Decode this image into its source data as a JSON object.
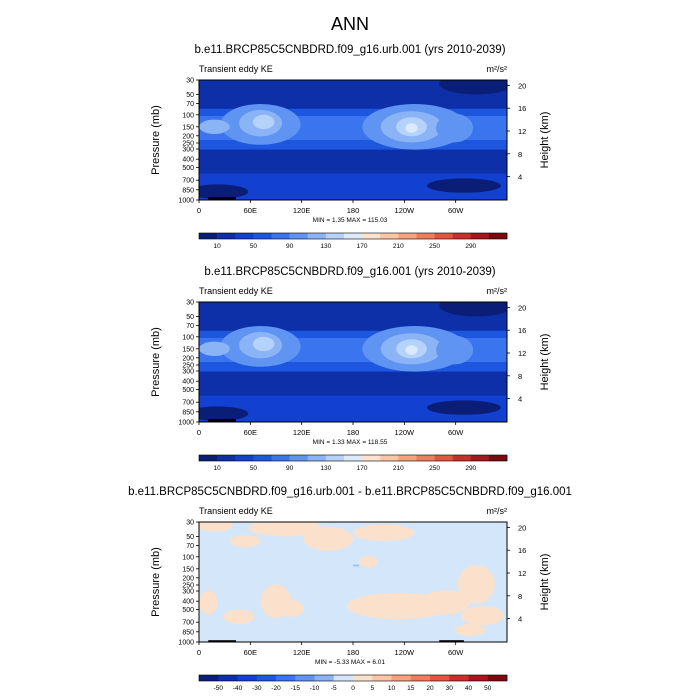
{
  "title": "ANN",
  "colors": {
    "blues": [
      "#0a1e78",
      "#0d2fa8",
      "#1240d0",
      "#1d57e0",
      "#3a74ee",
      "#5f94f2",
      "#8ab4f6",
      "#b4d2fa",
      "#dbeafd"
    ],
    "diff_background": "#d3e6fa",
    "diff_positive": "#fbe1cc",
    "land_mask": "#000000"
  },
  "chart_data": [
    {
      "type": "heatmap",
      "title": "b.e11.BRCP85C5CNBDRD.f09_g16.urb.001 (yrs 2010-2039)",
      "field_label": "Transient eddy KE",
      "units": "m²/s²",
      "ylabel": "Pressure (mb)",
      "ylabel_right": "Height (km)",
      "x_ticks": [
        "0",
        "60E",
        "120E",
        "180",
        "120W",
        "60W"
      ],
      "y_ticks": [
        "30",
        "50",
        "70",
        "100",
        "150",
        "200",
        "250",
        "300",
        "400",
        "500",
        "700",
        "850",
        "1000"
      ],
      "y_ticks_right": [
        "20",
        "16",
        "12",
        "8",
        "4"
      ],
      "stats": "MIN =   1.35  MAX = 115.03",
      "min": 1.35,
      "max": 115.03,
      "colorbar_levels": [
        "10",
        "50",
        "90",
        "130",
        "170",
        "210",
        "250",
        "290"
      ]
    },
    {
      "type": "heatmap",
      "title": "b.e11.BRCP85C5CNBDRD.f09_g16.001 (yrs 2010-2039)",
      "field_label": "Transient eddy KE",
      "units": "m²/s²",
      "ylabel": "Pressure (mb)",
      "ylabel_right": "Height (km)",
      "x_ticks": [
        "0",
        "60E",
        "120E",
        "180",
        "120W",
        "60W"
      ],
      "y_ticks": [
        "30",
        "50",
        "70",
        "100",
        "150",
        "200",
        "250",
        "300",
        "400",
        "500",
        "700",
        "850",
        "1000"
      ],
      "y_ticks_right": [
        "20",
        "16",
        "12",
        "8",
        "4"
      ],
      "stats": "MIN =   1.33  MAX = 118.55",
      "min": 1.33,
      "max": 118.55,
      "colorbar_levels": [
        "10",
        "50",
        "90",
        "130",
        "170",
        "210",
        "250",
        "290"
      ]
    },
    {
      "type": "heatmap",
      "title": "b.e11.BRCP85C5CNBDRD.f09_g16.urb.001 - b.e11.BRCP85C5CNBDRD.f09_g16.001",
      "field_label": "Transient eddy KE",
      "units": "m²/s²",
      "ylabel": "Pressure (mb)",
      "ylabel_right": "Height (km)",
      "x_ticks": [
        "0",
        "60E",
        "120E",
        "180",
        "120W",
        "60W"
      ],
      "y_ticks": [
        "30",
        "50",
        "70",
        "100",
        "150",
        "200",
        "250",
        "300",
        "400",
        "500",
        "700",
        "850",
        "1000"
      ],
      "y_ticks_right": [
        "20",
        "16",
        "12",
        "8",
        "4"
      ],
      "stats": "MIN =  -5.33  MAX =   6.01",
      "min": -5.33,
      "max": 6.01,
      "colorbar_levels": [
        "-50",
        "-40",
        "-30",
        "-20",
        "-15",
        "-10",
        "-5",
        "0",
        "5",
        "10",
        "15",
        "20",
        "30",
        "40",
        "50"
      ]
    }
  ]
}
